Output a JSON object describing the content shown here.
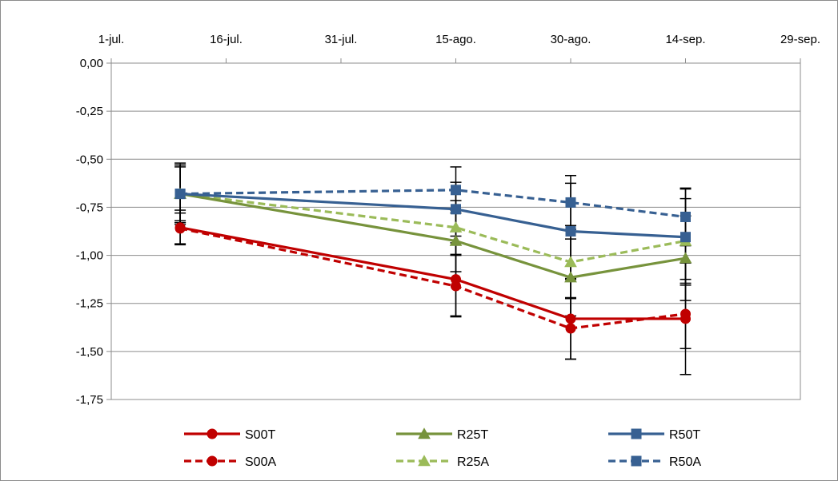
{
  "chart_data": {
    "type": "line",
    "title": "",
    "xlabel": "",
    "ylabel": "",
    "x_axis_position": "top",
    "x_ticks": [
      "1-jul.",
      "16-jul.",
      "31-jul.",
      "15-ago.",
      "30-ago.",
      "14-sep.",
      "29-sep."
    ],
    "y_ticks": [
      "0,00",
      "-0,25",
      "-0,50",
      "-0,75",
      "-1,00",
      "-1,25",
      "-1,50",
      "-1,75"
    ],
    "xlim": [
      "1-jul.",
      "29-sep."
    ],
    "ylim": [
      -1.75,
      0
    ],
    "grid": "horizontal",
    "legend_position": "bottom",
    "series": [
      {
        "name": "S00T",
        "color": "#c00000",
        "line": "solid",
        "marker": "circle",
        "x": [
          "10-jul.",
          "15-ago.",
          "30-ago.",
          "14-sep."
        ],
        "values": [
          -0.855,
          -1.125,
          -1.33,
          -1.33
        ],
        "error": [
          0.09,
          0.19,
          0.21,
          0.29
        ]
      },
      {
        "name": "R25T",
        "color": "#77933c",
        "line": "solid",
        "marker": "triangle",
        "x": [
          "10-jul.",
          "15-ago.",
          "30-ago.",
          "14-sep."
        ],
        "values": [
          -0.68,
          -0.925,
          -1.115,
          -1.015
        ],
        "error": [
          0.14,
          0.16,
          0.2,
          0.22
        ]
      },
      {
        "name": "R50T",
        "color": "#376092",
        "line": "solid",
        "marker": "square",
        "x": [
          "10-jul.",
          "15-ago.",
          "30-ago.",
          "14-sep."
        ],
        "values": [
          -0.68,
          -0.76,
          -0.875,
          -0.905
        ],
        "error": [
          0.16,
          0.14,
          0.25,
          0.25
        ]
      },
      {
        "name": "S00A",
        "color": "#c00000",
        "line": "dashed",
        "marker": "circle",
        "x": [
          "10-jul.",
          "15-ago.",
          "30-ago.",
          "14-sep."
        ],
        "values": [
          -0.86,
          -1.16,
          -1.38,
          -1.305
        ],
        "error": [
          0.08,
          0.16,
          0.16,
          0.18
        ]
      },
      {
        "name": "R25A",
        "color": "#9bbb59",
        "line": "dashed",
        "marker": "triangle",
        "x": [
          "10-jul.",
          "15-ago.",
          "30-ago.",
          "14-sep."
        ],
        "values": [
          -0.68,
          -0.855,
          -1.035,
          -0.925
        ],
        "error": [
          0.15,
          0.14,
          0.19,
          0.22
        ]
      },
      {
        "name": "R50A",
        "color": "#376092",
        "line": "dashed",
        "marker": "square",
        "x": [
          "10-jul.",
          "15-ago.",
          "30-ago.",
          "14-sep."
        ],
        "values": [
          -0.68,
          -0.66,
          -0.725,
          -0.8
        ],
        "error": [
          0.15,
          0.12,
          0.14,
          0.15
        ]
      }
    ]
  }
}
